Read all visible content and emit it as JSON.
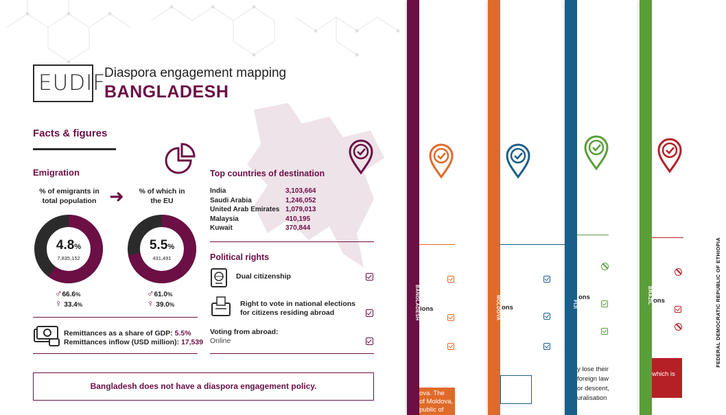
{
  "header": {
    "logo": "EUDIF",
    "subtitle": "Diaspora engagement mapping",
    "title": "BANGLADESH"
  },
  "facts": {
    "heading": "Facts & figures",
    "emigration_heading": "Emigration",
    "total_label": "% of emigrants in total population",
    "eu_label": "% of which in the EU",
    "total_pct": 4.8,
    "total_pct_display": "4.8",
    "total_count": "7,835,152",
    "total_male": "66.6",
    "total_female": "33.4",
    "eu_pct": 5.5,
    "eu_pct_display": "5.5",
    "eu_count": "431,491",
    "eu_male": "61.0",
    "eu_female": "39.0",
    "pct_unit": "%",
    "remit_gdp_label": "Remittances as a share of GDP: ",
    "remit_gdp_value": "5.5%",
    "remit_inflow_label": "Remittances inflow (USD million): ",
    "remit_inflow_value": "17,539"
  },
  "destinations": {
    "heading": "Top countries of destination",
    "rows": [
      {
        "country": "India",
        "value": "3,103,664"
      },
      {
        "country": "Saudi Arabia",
        "value": "1,246,052"
      },
      {
        "country": "United Arab Emirates",
        "value": "1,079,013"
      },
      {
        "country": "Malaysia",
        "value": "410,195"
      },
      {
        "country": "Kuwait",
        "value": "370,844"
      }
    ]
  },
  "political": {
    "heading": "Political rights",
    "dual": "Dual citizenship",
    "vote": "Right to vote in national elections for citizens residing abroad",
    "voting_abroad": "Voting from abroad:",
    "voting_abroad_value": "Online"
  },
  "policy_note": "Bangladesh does not have a diaspora engagement policy.",
  "side_pages": {
    "bangladesh": {
      "label": "BANGLADESH",
      "color": "#6b0f45",
      "frag_1": "ions",
      "frag_2": "ova.  The",
      "frag_3": "of Moldova,",
      "frag_4": "public of"
    },
    "moldova": {
      "label": "MOLDOVA",
      "color": "#e06a2a",
      "frag_1": "ons"
    },
    "fiji": {
      "label": "FIJI",
      "color": "#1a5e8a",
      "frag_1": "ons",
      "frag_2": "y lose their",
      "frag_3": "foreign law",
      "frag_4": "or descent,",
      "frag_5": "uralisation"
    },
    "brazil": {
      "label": "BRAZIL",
      "color": "#5a9e3a",
      "frag_1": "ons",
      "frag_2": "which is"
    },
    "ethiopia": {
      "label": "FEDERAL DEMOCRATIC REPUBLIC OF ETHIOPIA",
      "color": "#b52025"
    }
  }
}
